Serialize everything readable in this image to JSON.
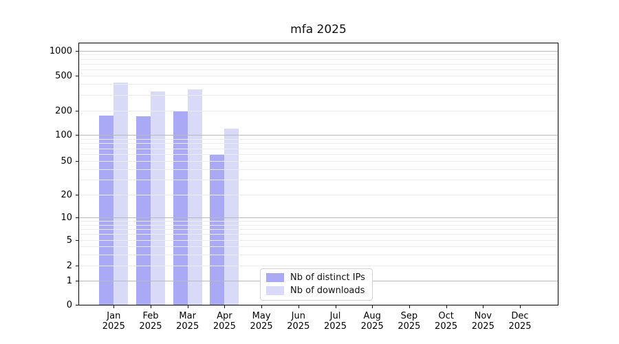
{
  "title": "mfa 2025",
  "chart_data": {
    "type": "bar",
    "title": "mfa 2025",
    "categories": [
      "Jan 2025",
      "Feb 2025",
      "Mar 2025",
      "Apr 2025",
      "May 2025",
      "Jun 2025",
      "Jul 2025",
      "Aug 2025",
      "Sep 2025",
      "Oct 2025",
      "Nov 2025",
      "Dec 2025"
    ],
    "series": [
      {
        "name": "Nb of distinct IPs",
        "color": "#a9a9f5",
        "values": [
          173,
          171,
          195,
          60,
          0,
          0,
          0,
          0,
          0,
          0,
          0,
          0
        ]
      },
      {
        "name": "Nb of downloads",
        "color": "#d9d9f8",
        "values": [
          420,
          330,
          350,
          120,
          0,
          0,
          0,
          0,
          0,
          0,
          0,
          0
        ]
      }
    ],
    "xlabel": "",
    "ylabel": "",
    "yscale": "symlog",
    "ylim": [
      0,
      1260
    ],
    "yticks": [
      0,
      1,
      2,
      5,
      10,
      20,
      50,
      100,
      200,
      500,
      1000
    ],
    "minor_grid_values": [
      2,
      3,
      4,
      5,
      6,
      7,
      8,
      9,
      20,
      30,
      40,
      50,
      60,
      70,
      80,
      90,
      200,
      300,
      400,
      500,
      600,
      700,
      800,
      900
    ],
    "major_grid_values": [
      1,
      10,
      100,
      1000
    ],
    "grid": true,
    "legend_position": "inside-lower-center"
  },
  "colors": {
    "major_grid": "#b9b9b9",
    "minor_grid": "#ececec",
    "axis": "#000000",
    "background": "#ffffff",
    "bar_distinct_ips": "#a9a9f5",
    "bar_downloads": "#d9d9f8"
  }
}
